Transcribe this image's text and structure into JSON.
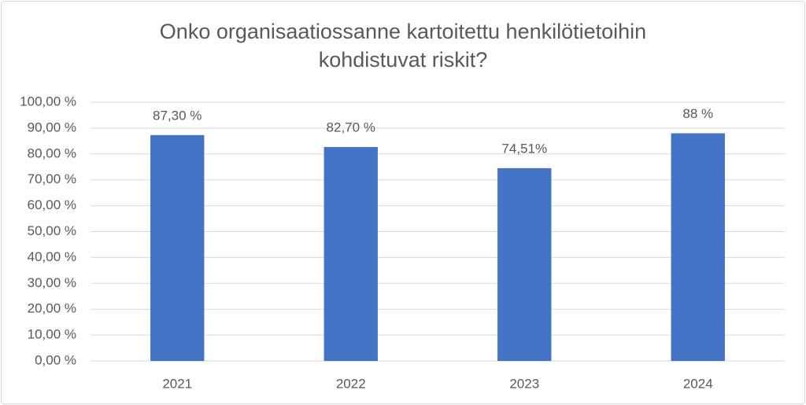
{
  "chart_data": {
    "type": "bar",
    "title": "Onko organisaatiossanne kartoitettu henkilötietoihin kohdistuvat riskit?",
    "categories": [
      "2021",
      "2022",
      "2023",
      "2024"
    ],
    "values": [
      87.3,
      82.7,
      74.51,
      88
    ],
    "value_labels": [
      "87,30 %",
      "82,70 %",
      "74,51%",
      "88 %"
    ],
    "color": "#4472c4",
    "ylim": [
      0,
      100
    ],
    "yticks": [
      {
        "value": 0,
        "label": "0,00 %"
      },
      {
        "value": 10,
        "label": "10,00 %"
      },
      {
        "value": 20,
        "label": "20,00 %"
      },
      {
        "value": 30,
        "label": "30,00 %"
      },
      {
        "value": 40,
        "label": "40,00 %"
      },
      {
        "value": 50,
        "label": "50,00 %"
      },
      {
        "value": 60,
        "label": "60,00 %"
      },
      {
        "value": 70,
        "label": "70,00 %"
      },
      {
        "value": 80,
        "label": "80,00 %"
      },
      {
        "value": 90,
        "label": "90,00 %"
      },
      {
        "value": 100,
        "label": "100,00 %"
      }
    ],
    "grid": true
  }
}
